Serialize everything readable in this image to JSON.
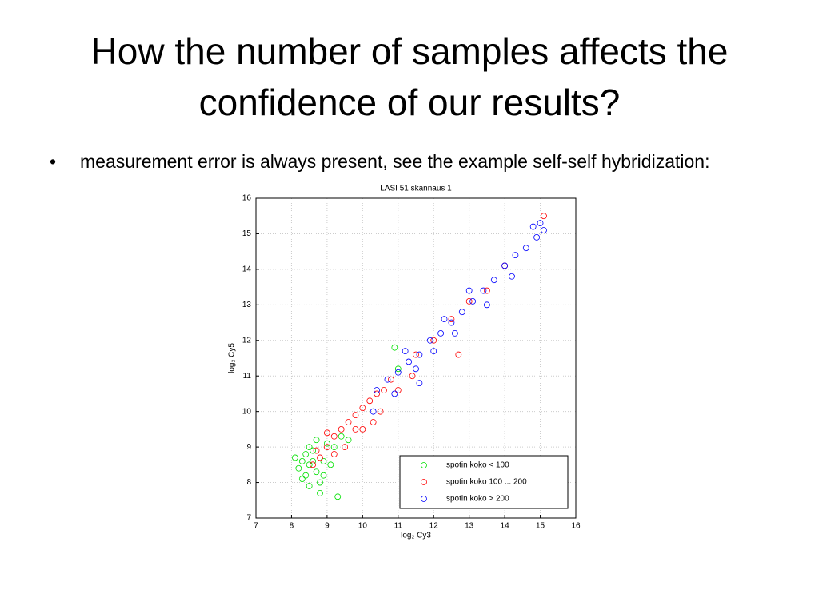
{
  "slide": {
    "title": "How the number of samples affects the confidence of our results?",
    "bullet": "measurement error is always present, see the example self-self hybridization:"
  },
  "chart_data": {
    "type": "scatter",
    "title": "LASI 51 skannaus 1",
    "x_label": "log₂ Cy3",
    "y_label": "log₂ Cy5",
    "xlim": [
      7,
      16
    ],
    "ylim": [
      7,
      16
    ],
    "xticks": [
      7,
      8,
      9,
      10,
      11,
      12,
      13,
      14,
      15,
      16
    ],
    "yticks": [
      7,
      8,
      9,
      10,
      11,
      12,
      13,
      14,
      15,
      16
    ],
    "grid": true,
    "legend": "lower right",
    "series": [
      {
        "name": "spotin koko < 100",
        "color": "#00e000",
        "x": [
          8.2,
          8.3,
          8.4,
          8.5,
          8.6,
          8.4,
          8.7,
          8.8,
          8.5,
          8.9,
          9.0,
          8.3,
          8.6,
          8.7,
          9.2,
          9.4,
          8.8,
          9.3,
          8.1,
          8.5,
          9.1,
          10.9,
          11.0,
          9.6,
          8.9
        ],
        "values": [
          8.4,
          8.6,
          8.2,
          8.5,
          8.9,
          8.8,
          8.3,
          8.0,
          7.9,
          8.6,
          9.1,
          8.1,
          8.6,
          9.2,
          9.0,
          9.3,
          7.7,
          7.6,
          8.7,
          9.0,
          8.5,
          11.8,
          11.2,
          9.2,
          8.2
        ]
      },
      {
        "name": "spotin koko 100 ... 200",
        "color": "#ff0000",
        "x": [
          8.6,
          8.8,
          9.0,
          9.2,
          9.4,
          9.6,
          9.8,
          10.0,
          10.2,
          10.4,
          10.6,
          10.8,
          9.5,
          10.0,
          10.5,
          11.0,
          9.0,
          11.5,
          12.0,
          12.5,
          13.0,
          12.7,
          11.4,
          9.8,
          8.7,
          14.0,
          15.1,
          13.5,
          10.3,
          9.2
        ],
        "values": [
          8.5,
          8.7,
          9.0,
          9.3,
          9.5,
          9.7,
          9.9,
          10.1,
          10.3,
          10.5,
          10.6,
          10.9,
          9.0,
          9.5,
          10.0,
          10.6,
          9.4,
          11.6,
          12.0,
          12.6,
          13.1,
          11.6,
          11.0,
          9.5,
          8.9,
          14.1,
          15.5,
          13.4,
          9.7,
          8.8
        ]
      },
      {
        "name": "spotin koko > 200",
        "color": "#0000ff",
        "x": [
          10.4,
          10.7,
          11.0,
          11.3,
          11.6,
          11.9,
          12.2,
          12.5,
          12.8,
          13.1,
          13.4,
          13.7,
          14.0,
          14.3,
          14.6,
          14.9,
          15.0,
          15.1,
          10.9,
          11.5,
          12.0,
          12.6,
          13.5,
          14.2,
          11.2,
          10.3,
          11.6,
          12.3,
          13.0,
          14.8
        ],
        "values": [
          10.6,
          10.9,
          11.1,
          11.4,
          11.6,
          12.0,
          12.2,
          12.5,
          12.8,
          13.1,
          13.4,
          13.7,
          14.1,
          14.4,
          14.6,
          14.9,
          15.3,
          15.1,
          10.5,
          11.2,
          11.7,
          12.2,
          13.0,
          13.8,
          11.7,
          10.0,
          10.8,
          12.6,
          13.4,
          15.2
        ]
      }
    ]
  }
}
